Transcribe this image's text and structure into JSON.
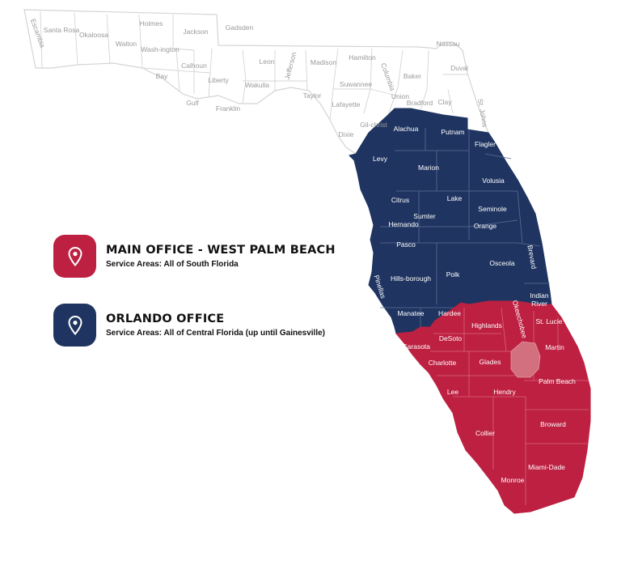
{
  "colors": {
    "north_outline": "#d4d4d4",
    "central": "#1f3461",
    "south": "#bd2041",
    "lake": "#d2707f",
    "label_light": "#9a9a9a",
    "label_white": "#ffffff"
  },
  "legend": [
    {
      "title": "MAIN OFFICE - WEST PALM BEACH",
      "subtitle": "Service Areas: All of South Florida",
      "color": "#bd2041",
      "icon": "map-pin-icon"
    },
    {
      "title": "ORLANDO OFFICE",
      "subtitle": "Service Areas: All of Central Florida (up until Gainesville)",
      "color": "#1f3461",
      "icon": "map-pin-icon"
    }
  ],
  "counties": {
    "north": [
      "Escambia",
      "Santa Rosa",
      "Okaloosa",
      "Walton",
      "Holmes",
      "Wash-ington",
      "Jackson",
      "Gadsden",
      "Calhoun",
      "Liberty",
      "Bay",
      "Gulf",
      "Franklin",
      "Wakulla",
      "Leon",
      "Jefferson",
      "Madison",
      "Hamilton",
      "Taylor",
      "Suwannee",
      "Columbia",
      "Lafayette",
      "Dixie",
      "Gil-christ",
      "Union",
      "Bradford",
      "Baker",
      "Nassau",
      "Duval",
      "Clay",
      "St. Johns"
    ],
    "central": [
      "Alachua",
      "Putnam",
      "Flagler",
      "Levy",
      "Marion",
      "Volusia",
      "Citrus",
      "Lake",
      "Seminole",
      "Sumter",
      "Hernando",
      "Orange",
      "Brevard",
      "Pasco",
      "Osceola",
      "Pinellas",
      "Hills-borough",
      "Polk",
      "Indian River",
      "Manatee",
      "Hardee"
    ],
    "south": [
      "Okeechobee",
      "Highlands",
      "St. Lucie",
      "Sarasota",
      "DeSoto",
      "Martin",
      "Glades",
      "Charlotte",
      "Palm Beach",
      "Lee",
      "Hendry",
      "Broward",
      "Collier",
      "Miami-Dade",
      "Monroe"
    ]
  }
}
